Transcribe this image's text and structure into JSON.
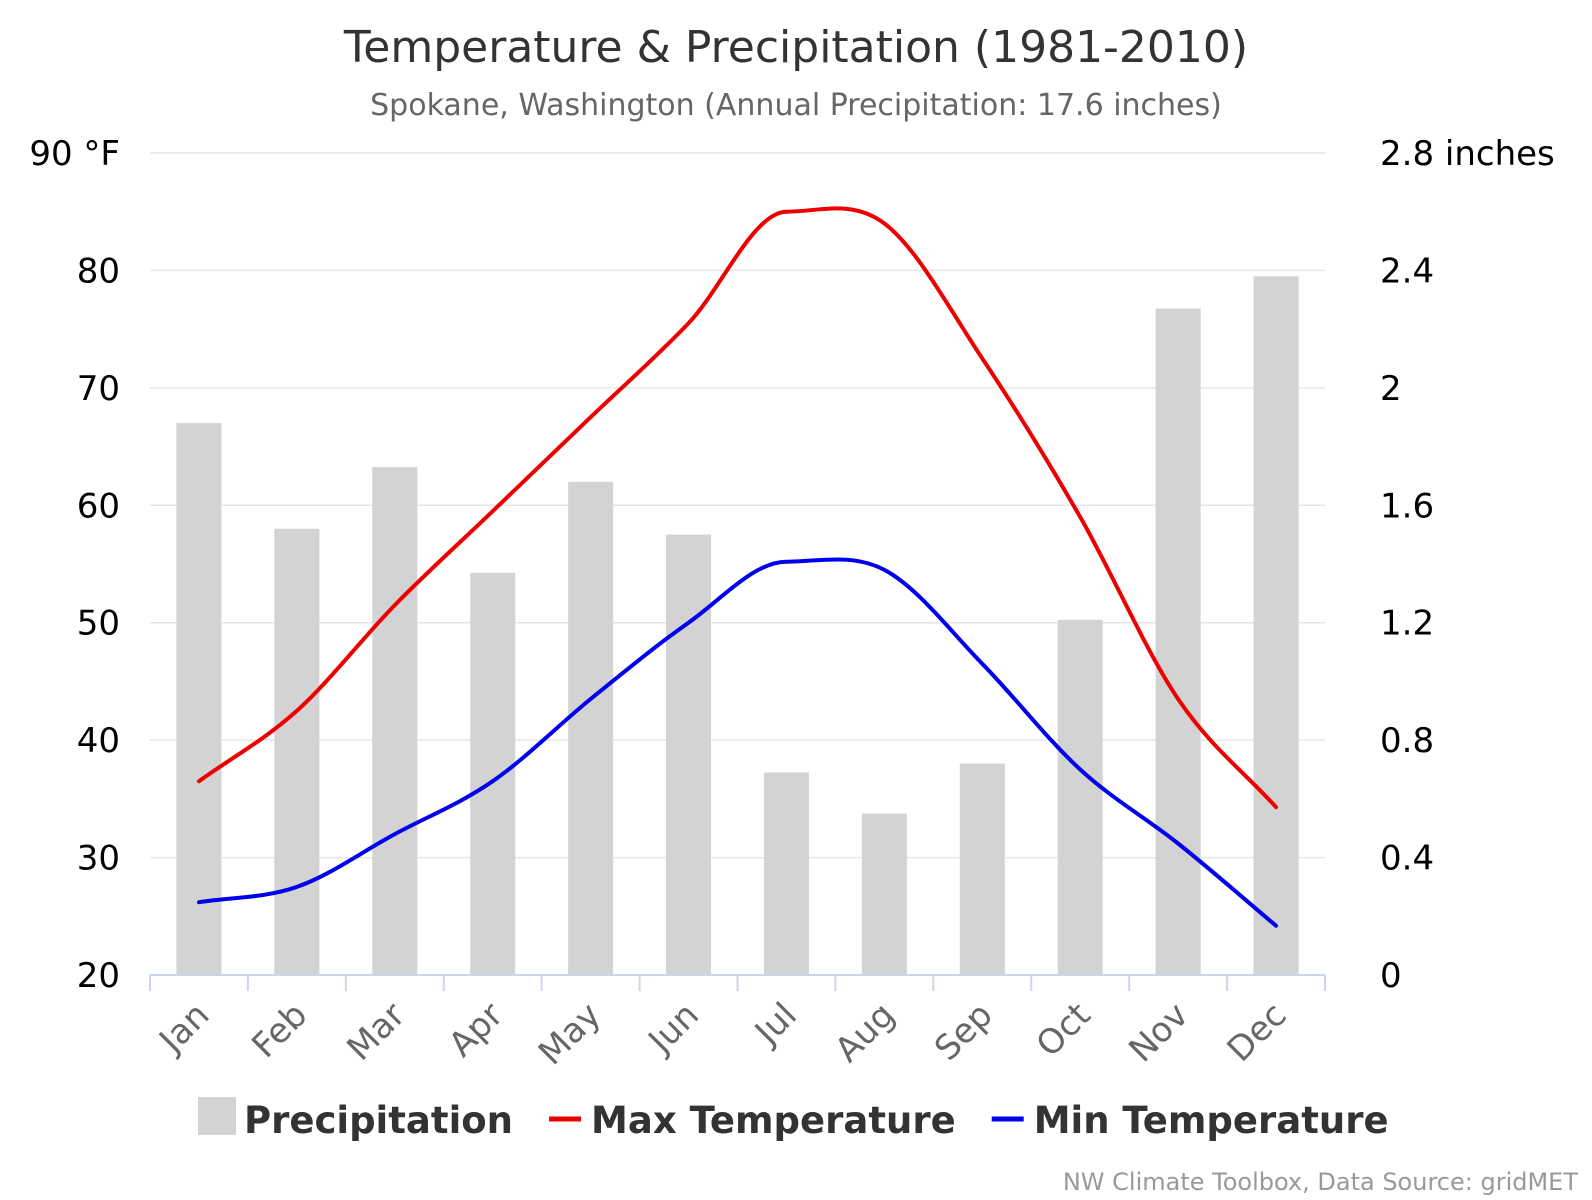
{
  "chart_data": {
    "type": "bar",
    "title": "Temperature & Precipitation (1981-2010)",
    "subtitle": "Spokane, Washington (Annual Precipitation: 17.6 inches)",
    "credit": "NW Climate Toolbox, Data Source: gridMET",
    "categories": [
      "Jan",
      "Feb",
      "Mar",
      "Apr",
      "May",
      "Jun",
      "Jul",
      "Aug",
      "Sep",
      "Oct",
      "Nov",
      "Dec"
    ],
    "y_left": {
      "ylim": [
        20,
        90
      ],
      "ticks": [
        20,
        30,
        40,
        50,
        60,
        70,
        80,
        90
      ],
      "tick_labels": [
        "20",
        "30",
        "40",
        "50",
        "60",
        "70",
        "80",
        "90 °F"
      ]
    },
    "y_right": {
      "ylim": [
        0,
        2.8
      ],
      "ticks": [
        0,
        0.4,
        0.8,
        1.2,
        1.6,
        2,
        2.4,
        2.8
      ],
      "tick_labels": [
        "0",
        "0.4",
        "0.8",
        "1.2",
        "1.6",
        "2",
        "2.4",
        "2.8 inches"
      ]
    },
    "grid": true,
    "legend_position": "bottom",
    "series": [
      {
        "name": "Precipitation",
        "kind": "bar",
        "axis": "right",
        "color": "#d3d3d3",
        "values": [
          1.88,
          1.52,
          1.73,
          1.37,
          1.68,
          1.5,
          0.69,
          0.55,
          0.72,
          1.21,
          2.27,
          2.38
        ]
      },
      {
        "name": "Max Temperature",
        "kind": "line",
        "axis": "left",
        "color": "#ee0000",
        "values": [
          36.5,
          42.5,
          51.5,
          59.5,
          67.5,
          75.5,
          85.0,
          84.0,
          72.5,
          59.0,
          43.5,
          34.3
        ]
      },
      {
        "name": "Min Temperature",
        "kind": "line",
        "axis": "left",
        "color": "#0000ee",
        "values": [
          26.2,
          27.5,
          32.0,
          36.5,
          43.5,
          50.0,
          55.2,
          54.5,
          46.5,
          37.5,
          31.2,
          24.2
        ]
      }
    ]
  }
}
